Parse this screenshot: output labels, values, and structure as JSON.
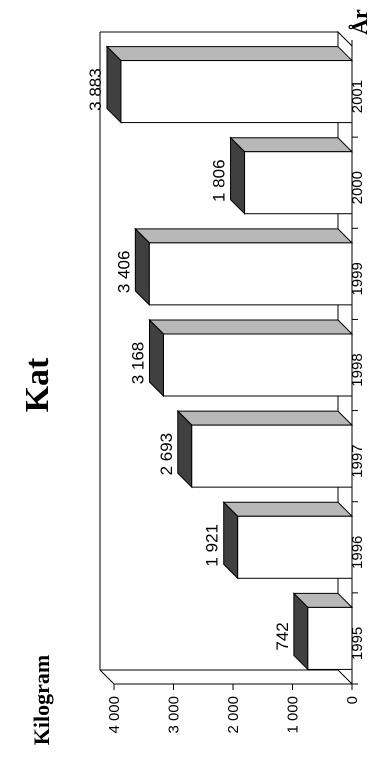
{
  "chart_data": {
    "type": "bar",
    "title": "Kat",
    "xlabel": "År",
    "ylabel": "Kilogram",
    "categories": [
      "1995",
      "1996",
      "1997",
      "1998",
      "1999",
      "2000",
      "2001"
    ],
    "values": [
      742,
      1921,
      2693,
      3168,
      3406,
      1806,
      3883
    ],
    "value_labels": [
      "742",
      "1 921",
      "2 693",
      "3 168",
      "3 406",
      "1 806",
      "3 883"
    ],
    "yticks": [
      "0",
      "1 000",
      "2 000",
      "3 000",
      "4 000"
    ],
    "ylim": [
      0,
      4000
    ],
    "orientation": "rotated 90° clockwise (3D bars)",
    "grid": false,
    "legend": "none",
    "colors": {
      "bar_face": "#ffffff",
      "bar_top": "#404040",
      "bar_side": "#b8b8b8",
      "axis": "#000000"
    }
  }
}
